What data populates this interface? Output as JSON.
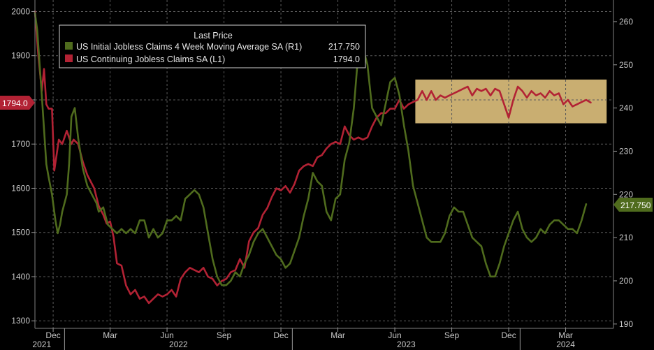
{
  "chart_data": {
    "type": "line",
    "legend": {
      "title": "Last Price",
      "placement": "top-left",
      "entries": [
        {
          "label": "US Initial Jobless Claims 4 Week Moving Average SA  (R1)",
          "value": "217.750",
          "color": "#4f6b1d"
        },
        {
          "label": "US Continuing Jobless Claims SA  (L1)",
          "value": "1794.0",
          "color": "#b22234"
        }
      ]
    },
    "left_axis": {
      "ticks": [
        1300,
        1400,
        1500,
        1600,
        1700,
        1800,
        1900,
        2000
      ],
      "ylim": [
        1283,
        2026
      ]
    },
    "right_axis": {
      "ticks": [
        190,
        200,
        210,
        220,
        230,
        240,
        250,
        260
      ],
      "ylim": [
        189,
        265
      ]
    },
    "x_axis": {
      "month_labels": [
        {
          "label": "Dec",
          "x": 2021.95
        },
        {
          "label": "Mar",
          "x": 2022.2
        },
        {
          "label": "Jun",
          "x": 2022.45
        },
        {
          "label": "Sep",
          "x": 2022.7
        },
        {
          "label": "Dec",
          "x": 2022.95
        },
        {
          "label": "Mar",
          "x": 2023.2
        },
        {
          "label": "Jun",
          "x": 2023.45
        },
        {
          "label": "Sep",
          "x": 2023.7
        },
        {
          "label": "Dec",
          "x": 2023.95
        },
        {
          "label": "Mar",
          "x": 2024.2
        }
      ],
      "year_labels": [
        {
          "label": "2021",
          "x": 2021.9
        },
        {
          "label": "2022",
          "x": 2022.5
        },
        {
          "label": "2023",
          "x": 2023.5
        },
        {
          "label": "2024",
          "x": 2024.2
        }
      ],
      "xlim": [
        2021.87,
        2024.41
      ]
    },
    "last_price_labels": {
      "left": "1794.0",
      "right": "217.750"
    },
    "highlight_band": {
      "x": [
        2023.54,
        2024.38
      ],
      "y_left": [
        1747,
        1846
      ],
      "color": "#f5d48a"
    },
    "series": [
      {
        "name": "US Continuing Jobless Claims SA  (L1)",
        "axis": "left",
        "color": "#b22234",
        "points": [
          [
            2021.87,
            2000
          ],
          [
            2021.885,
            1900
          ],
          [
            2021.9,
            1820
          ],
          [
            2021.91,
            1870
          ],
          [
            2021.92,
            1790
          ],
          [
            2021.93,
            1780
          ],
          [
            2021.945,
            1780
          ],
          [
            2021.955,
            1640
          ],
          [
            2021.975,
            1710
          ],
          [
            2021.99,
            1700
          ],
          [
            2022.01,
            1730
          ],
          [
            2022.03,
            1700
          ],
          [
            2022.04,
            1710
          ],
          [
            2022.06,
            1700
          ],
          [
            2022.08,
            1660
          ],
          [
            2022.1,
            1630
          ],
          [
            2022.12,
            1610
          ],
          [
            2022.13,
            1600
          ],
          [
            2022.15,
            1560
          ],
          [
            2022.17,
            1540
          ],
          [
            2022.185,
            1520
          ],
          [
            2022.2,
            1525
          ],
          [
            2022.215,
            1490
          ],
          [
            2022.23,
            1430
          ],
          [
            2022.25,
            1425
          ],
          [
            2022.27,
            1380
          ],
          [
            2022.29,
            1360
          ],
          [
            2022.31,
            1370
          ],
          [
            2022.33,
            1350
          ],
          [
            2022.35,
            1355
          ],
          [
            2022.37,
            1340
          ],
          [
            2022.39,
            1350
          ],
          [
            2022.41,
            1360
          ],
          [
            2022.43,
            1355
          ],
          [
            2022.45,
            1360
          ],
          [
            2022.47,
            1370
          ],
          [
            2022.49,
            1355
          ],
          [
            2022.51,
            1395
          ],
          [
            2022.53,
            1410
          ],
          [
            2022.55,
            1420
          ],
          [
            2022.57,
            1415
          ],
          [
            2022.59,
            1410
          ],
          [
            2022.61,
            1420
          ],
          [
            2022.63,
            1400
          ],
          [
            2022.65,
            1395
          ],
          [
            2022.67,
            1380
          ],
          [
            2022.69,
            1390
          ],
          [
            2022.71,
            1395
          ],
          [
            2022.73,
            1410
          ],
          [
            2022.75,
            1415
          ],
          [
            2022.77,
            1440
          ],
          [
            2022.79,
            1420
          ],
          [
            2022.81,
            1480
          ],
          [
            2022.83,
            1500
          ],
          [
            2022.85,
            1510
          ],
          [
            2022.87,
            1540
          ],
          [
            2022.89,
            1555
          ],
          [
            2022.91,
            1580
          ],
          [
            2022.93,
            1600
          ],
          [
            2022.95,
            1595
          ],
          [
            2022.97,
            1605
          ],
          [
            2022.99,
            1590
          ],
          [
            2023.01,
            1610
          ],
          [
            2023.03,
            1640
          ],
          [
            2023.05,
            1650
          ],
          [
            2023.07,
            1655
          ],
          [
            2023.09,
            1650
          ],
          [
            2023.11,
            1670
          ],
          [
            2023.13,
            1675
          ],
          [
            2023.15,
            1690
          ],
          [
            2023.17,
            1700
          ],
          [
            2023.19,
            1705
          ],
          [
            2023.21,
            1700
          ],
          [
            2023.23,
            1740
          ],
          [
            2023.25,
            1720
          ],
          [
            2023.27,
            1710
          ],
          [
            2023.29,
            1715
          ],
          [
            2023.31,
            1710
          ],
          [
            2023.33,
            1715
          ],
          [
            2023.35,
            1740
          ],
          [
            2023.37,
            1760
          ],
          [
            2023.39,
            1770
          ],
          [
            2023.41,
            1770
          ],
          [
            2023.43,
            1780
          ],
          [
            2023.45,
            1780
          ],
          [
            2023.47,
            1800
          ],
          [
            2023.49,
            1780
          ],
          [
            2023.51,
            1790
          ],
          [
            2023.53,
            1795
          ],
          [
            2023.55,
            1800
          ],
          [
            2023.57,
            1820
          ],
          [
            2023.59,
            1800
          ],
          [
            2023.61,
            1820
          ],
          [
            2023.63,
            1800
          ],
          [
            2023.65,
            1810
          ],
          [
            2023.67,
            1805
          ],
          [
            2023.69,
            1810
          ],
          [
            2023.71,
            1815
          ],
          [
            2023.73,
            1820
          ],
          [
            2023.75,
            1825
          ],
          [
            2023.77,
            1830
          ],
          [
            2023.79,
            1810
          ],
          [
            2023.81,
            1825
          ],
          [
            2023.83,
            1820
          ],
          [
            2023.85,
            1825
          ],
          [
            2023.87,
            1810
          ],
          [
            2023.89,
            1825
          ],
          [
            2023.91,
            1820
          ],
          [
            2023.93,
            1790
          ],
          [
            2023.95,
            1760
          ],
          [
            2023.97,
            1800
          ],
          [
            2023.99,
            1830
          ],
          [
            2024.01,
            1820
          ],
          [
            2024.03,
            1805
          ],
          [
            2024.05,
            1820
          ],
          [
            2024.07,
            1810
          ],
          [
            2024.09,
            1815
          ],
          [
            2024.11,
            1805
          ],
          [
            2024.13,
            1820
          ],
          [
            2024.15,
            1810
          ],
          [
            2024.17,
            1815
          ],
          [
            2024.19,
            1790
          ],
          [
            2024.21,
            1800
          ],
          [
            2024.23,
            1785
          ],
          [
            2024.25,
            1790
          ],
          [
            2024.27,
            1795
          ],
          [
            2024.29,
            1800
          ],
          [
            2024.31,
            1794
          ]
        ]
      },
      {
        "name": "US Initial Jobless Claims 4 Week Moving Average SA  (R1)",
        "axis": "right",
        "color": "#4f6b1d",
        "points": [
          [
            2021.87,
            262
          ],
          [
            2021.88,
            258
          ],
          [
            2021.9,
            243
          ],
          [
            2021.92,
            227
          ],
          [
            2021.93,
            224
          ],
          [
            2021.945,
            220
          ],
          [
            2021.96,
            214
          ],
          [
            2021.97,
            211
          ],
          [
            2021.98,
            213
          ],
          [
            2021.99,
            216
          ],
          [
            2022.01,
            220
          ],
          [
            2022.02,
            227
          ],
          [
            2022.03,
            238
          ],
          [
            2022.045,
            240
          ],
          [
            2022.06,
            233
          ],
          [
            2022.08,
            226
          ],
          [
            2022.1,
            222
          ],
          [
            2022.12,
            220
          ],
          [
            2022.14,
            218
          ],
          [
            2022.15,
            216
          ],
          [
            2022.17,
            217
          ],
          [
            2022.19,
            213
          ],
          [
            2022.21,
            212
          ],
          [
            2022.23,
            211
          ],
          [
            2022.25,
            212
          ],
          [
            2022.27,
            211
          ],
          [
            2022.29,
            212
          ],
          [
            2022.31,
            211
          ],
          [
            2022.33,
            214
          ],
          [
            2022.35,
            214
          ],
          [
            2022.37,
            210
          ],
          [
            2022.39,
            212
          ],
          [
            2022.41,
            210
          ],
          [
            2022.43,
            211
          ],
          [
            2022.45,
            214
          ],
          [
            2022.47,
            214
          ],
          [
            2022.49,
            215
          ],
          [
            2022.51,
            214
          ],
          [
            2022.53,
            219
          ],
          [
            2022.55,
            220
          ],
          [
            2022.57,
            221
          ],
          [
            2022.59,
            220
          ],
          [
            2022.61,
            217
          ],
          [
            2022.63,
            211
          ],
          [
            2022.65,
            205
          ],
          [
            2022.67,
            201
          ],
          [
            2022.69,
            199
          ],
          [
            2022.71,
            199
          ],
          [
            2022.73,
            200
          ],
          [
            2022.75,
            202
          ],
          [
            2022.77,
            201
          ],
          [
            2022.79,
            204
          ],
          [
            2022.81,
            206
          ],
          [
            2022.83,
            209
          ],
          [
            2022.85,
            211
          ],
          [
            2022.87,
            212
          ],
          [
            2022.89,
            210
          ],
          [
            2022.91,
            208
          ],
          [
            2022.93,
            206
          ],
          [
            2022.95,
            205
          ],
          [
            2022.97,
            203
          ],
          [
            2022.99,
            204
          ],
          [
            2023.01,
            207
          ],
          [
            2023.03,
            210
          ],
          [
            2023.05,
            215
          ],
          [
            2023.07,
            219
          ],
          [
            2023.09,
            225
          ],
          [
            2023.11,
            223
          ],
          [
            2023.13,
            222
          ],
          [
            2023.15,
            216
          ],
          [
            2023.17,
            214
          ],
          [
            2023.19,
            219
          ],
          [
            2023.21,
            220
          ],
          [
            2023.23,
            228
          ],
          [
            2023.25,
            232
          ],
          [
            2023.27,
            240
          ],
          [
            2023.29,
            253
          ],
          [
            2023.31,
            254
          ],
          [
            2023.33,
            250
          ],
          [
            2023.35,
            240
          ],
          [
            2023.37,
            238
          ],
          [
            2023.39,
            236
          ],
          [
            2023.41,
            241
          ],
          [
            2023.43,
            246
          ],
          [
            2023.45,
            247
          ],
          [
            2023.47,
            243
          ],
          [
            2023.49,
            236
          ],
          [
            2023.51,
            230
          ],
          [
            2023.53,
            222
          ],
          [
            2023.55,
            218
          ],
          [
            2023.57,
            214
          ],
          [
            2023.59,
            210
          ],
          [
            2023.61,
            209
          ],
          [
            2023.63,
            209
          ],
          [
            2023.65,
            209
          ],
          [
            2023.67,
            211
          ],
          [
            2023.69,
            215
          ],
          [
            2023.71,
            217
          ],
          [
            2023.73,
            216
          ],
          [
            2023.75,
            216
          ],
          [
            2023.77,
            213
          ],
          [
            2023.79,
            210
          ],
          [
            2023.81,
            209
          ],
          [
            2023.83,
            208
          ],
          [
            2023.85,
            204
          ],
          [
            2023.87,
            201
          ],
          [
            2023.89,
            201
          ],
          [
            2023.91,
            204
          ],
          [
            2023.93,
            208
          ],
          [
            2023.95,
            211
          ],
          [
            2023.97,
            214
          ],
          [
            2023.99,
            216
          ],
          [
            2024.01,
            212
          ],
          [
            2024.03,
            210
          ],
          [
            2024.05,
            209
          ],
          [
            2024.07,
            210
          ],
          [
            2024.09,
            212
          ],
          [
            2024.11,
            211
          ],
          [
            2024.13,
            213
          ],
          [
            2024.15,
            214
          ],
          [
            2024.17,
            214
          ],
          [
            2024.19,
            213
          ],
          [
            2024.21,
            212
          ],
          [
            2024.23,
            212
          ],
          [
            2024.25,
            211
          ],
          [
            2024.27,
            214
          ],
          [
            2024.29,
            217.75
          ]
        ]
      }
    ]
  }
}
